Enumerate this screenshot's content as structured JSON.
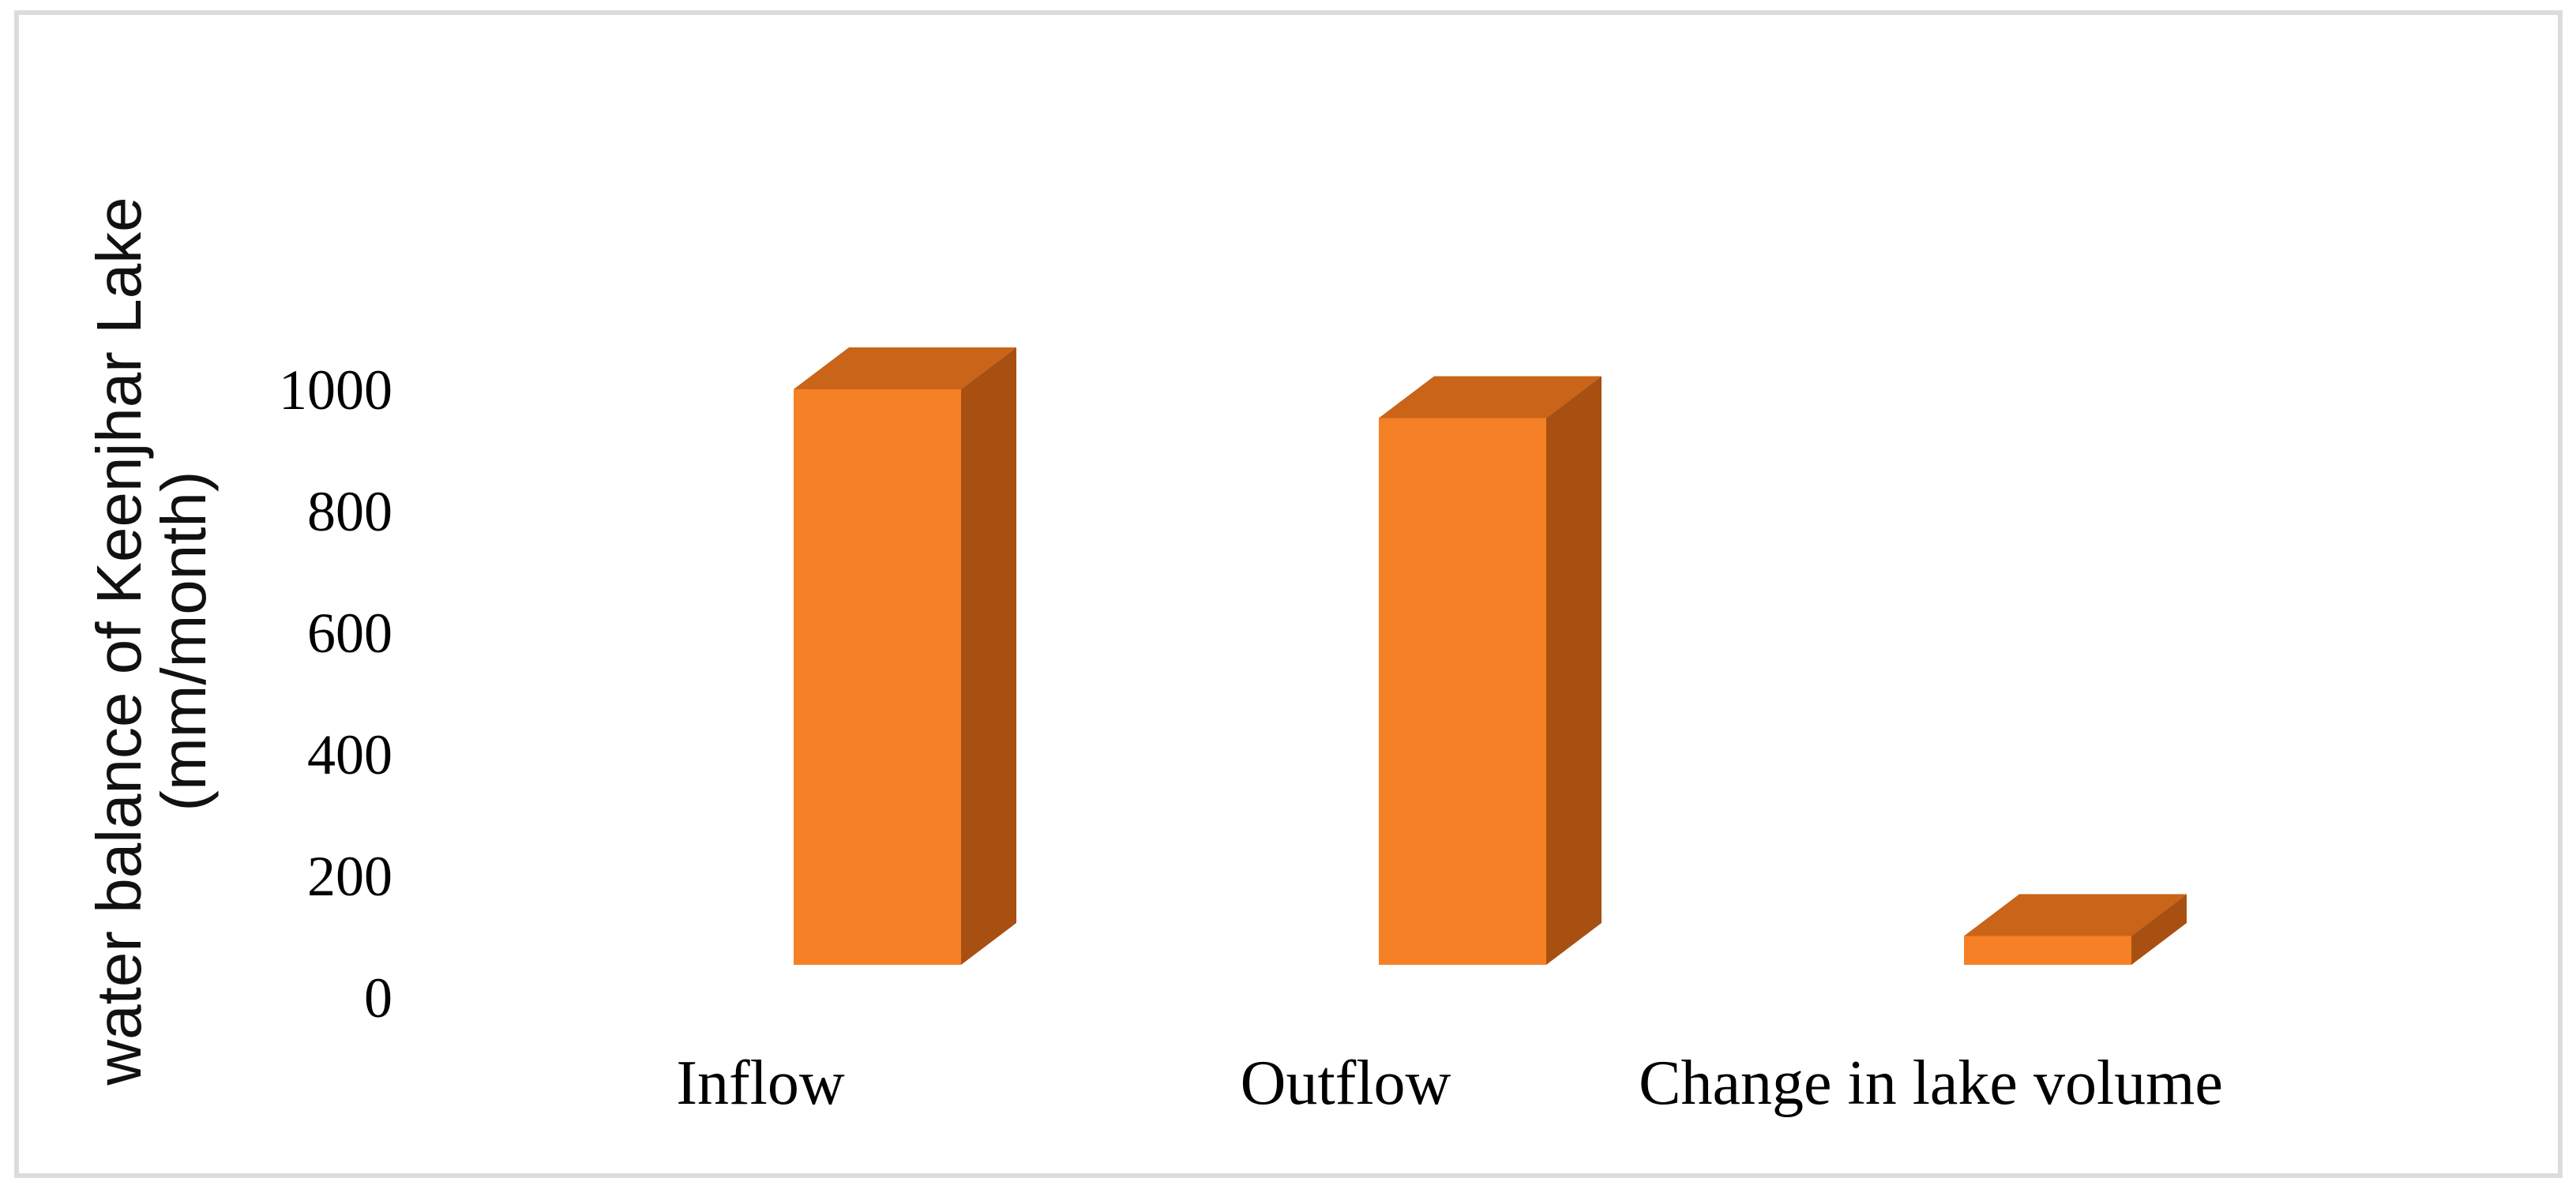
{
  "figure": {
    "background": "#FFFFFF",
    "frame_border_color": "#DCDCDC"
  },
  "chart_data": {
    "type": "bar",
    "style": "3d-column",
    "title": "",
    "xlabel": "",
    "ylabel": "water balance of Keenjhar Lake (mm/month)",
    "ylabel_lines": [
      "water balance of Keenjhar Lake",
      "(mm/month)"
    ],
    "categories": [
      "Inflow",
      "Outflow",
      "Change in lake volume"
    ],
    "values": [
      1000,
      950,
      50
    ],
    "yticks": [
      0,
      200,
      400,
      600,
      800,
      1000
    ],
    "ylim": [
      0,
      1000
    ],
    "grid": false,
    "legend_position": "none",
    "colors": {
      "bar_front": "#F68026",
      "bar_top": "#C96418",
      "bar_side": "#A85012"
    }
  }
}
